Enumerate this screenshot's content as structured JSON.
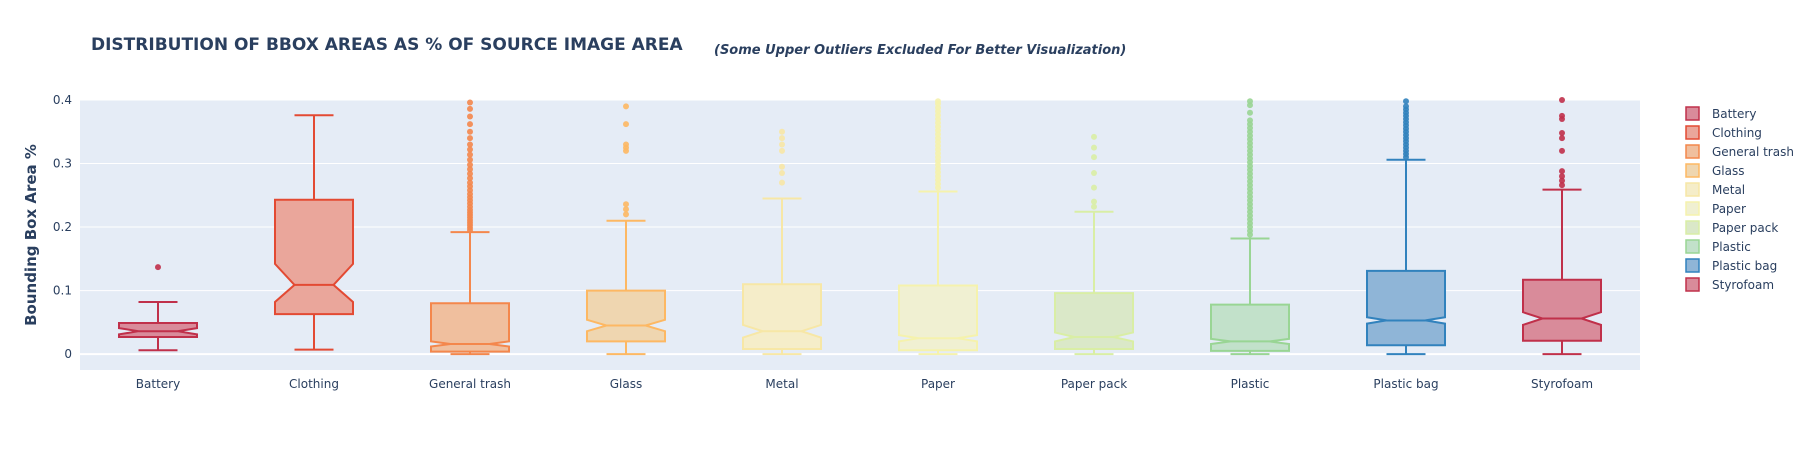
{
  "chart_data": {
    "type": "box",
    "title": "DISTRIBUTION OF BBOX AREAS AS % OF SOURCE IMAGE AREA",
    "subtitle": "(Some Upper Outliers Excluded For Better Visualization)",
    "xlabel": "",
    "ylabel": "Bounding Box Area %",
    "ylim": [
      -0.025,
      0.4
    ],
    "yticks": [
      0,
      0.1,
      0.2,
      0.3,
      0.4
    ],
    "ytick_labels": [
      "0",
      "0.1",
      "0.2",
      "0.3",
      "0.4"
    ],
    "notched": true,
    "grid": true,
    "legend_position": "right",
    "background": "#e5ecf6",
    "categories": [
      "Battery",
      "Clothing",
      "General trash",
      "Glass",
      "Metal",
      "Paper",
      "Paper pack",
      "Plastic",
      "Plastic bag",
      "Styrofoam"
    ],
    "series": [
      {
        "name": "Battery",
        "color": "#c0304a",
        "fill": "#d98b9a",
        "lower_whisker": 0.006,
        "q1": 0.027,
        "median": 0.036,
        "q3": 0.049,
        "upper_whisker": 0.082,
        "notch_low": 0.031,
        "notch_high": 0.041,
        "outliers": [
          0.137
        ]
      },
      {
        "name": "Clothing",
        "color": "#e34a33",
        "fill": "#eaa69b",
        "lower_whisker": 0.007,
        "q1": 0.063,
        "median": 0.109,
        "q3": 0.243,
        "upper_whisker": 0.376,
        "notch_low": 0.082,
        "notch_high": 0.142,
        "outliers": []
      },
      {
        "name": "General trash",
        "color": "#f4874c",
        "fill": "#f0bf9e",
        "lower_whisker": 0.0,
        "q1": 0.004,
        "median": 0.016,
        "q3": 0.08,
        "upper_whisker": 0.192,
        "notch_low": 0.012,
        "notch_high": 0.02,
        "outliers": [
          0.195,
          0.199,
          0.203,
          0.207,
          0.211,
          0.215,
          0.219,
          0.223,
          0.227,
          0.232,
          0.237,
          0.242,
          0.247,
          0.252,
          0.258,
          0.264,
          0.27,
          0.277,
          0.284,
          0.291,
          0.298,
          0.306,
          0.314,
          0.322,
          0.33,
          0.34,
          0.35,
          0.362,
          0.374,
          0.386,
          0.396
        ]
      },
      {
        "name": "Glass",
        "color": "#fdb863",
        "fill": "#efd6b0",
        "lower_whisker": 0.0,
        "q1": 0.02,
        "median": 0.045,
        "q3": 0.1,
        "upper_whisker": 0.21,
        "notch_low": 0.036,
        "notch_high": 0.054,
        "outliers": [
          0.22,
          0.228,
          0.236,
          0.32,
          0.325,
          0.33,
          0.362,
          0.39
        ]
      },
      {
        "name": "Metal",
        "color": "#f7e7a6",
        "fill": "#f5edc9",
        "lower_whisker": 0.0,
        "q1": 0.008,
        "median": 0.036,
        "q3": 0.11,
        "upper_whisker": 0.245,
        "notch_low": 0.026,
        "notch_high": 0.046,
        "outliers": [
          0.27,
          0.285,
          0.295,
          0.32,
          0.33,
          0.34,
          0.35
        ]
      },
      {
        "name": "Paper",
        "color": "#f5f2ad",
        "fill": "#f0f0d2",
        "lower_whisker": 0.0,
        "q1": 0.006,
        "median": 0.025,
        "q3": 0.108,
        "upper_whisker": 0.256,
        "notch_low": 0.02,
        "notch_high": 0.03,
        "outliers": [
          0.262,
          0.268,
          0.274,
          0.28,
          0.286,
          0.292,
          0.298,
          0.304,
          0.31,
          0.316,
          0.322,
          0.328,
          0.334,
          0.34,
          0.346,
          0.352,
          0.358,
          0.364,
          0.37,
          0.376,
          0.382,
          0.388,
          0.394,
          0.398
        ]
      },
      {
        "name": "Paper pack",
        "color": "#d9eea5",
        "fill": "#dae8c8",
        "lower_whisker": 0.0,
        "q1": 0.008,
        "median": 0.027,
        "q3": 0.096,
        "upper_whisker": 0.224,
        "notch_low": 0.02,
        "notch_high": 0.034,
        "outliers": [
          0.232,
          0.24,
          0.262,
          0.285,
          0.31,
          0.325,
          0.342
        ]
      },
      {
        "name": "Plastic",
        "color": "#99d594",
        "fill": "#c2e1ca",
        "lower_whisker": 0.0,
        "q1": 0.005,
        "median": 0.02,
        "q3": 0.078,
        "upper_whisker": 0.182,
        "notch_low": 0.016,
        "notch_high": 0.024,
        "outliers": [
          0.188,
          0.194,
          0.2,
          0.206,
          0.212,
          0.218,
          0.224,
          0.23,
          0.236,
          0.242,
          0.248,
          0.254,
          0.26,
          0.266,
          0.272,
          0.278,
          0.284,
          0.29,
          0.296,
          0.302,
          0.308,
          0.314,
          0.32,
          0.326,
          0.332,
          0.338,
          0.344,
          0.35,
          0.356,
          0.362,
          0.368,
          0.38,
          0.392,
          0.398
        ]
      },
      {
        "name": "Plastic bag",
        "color": "#3182bd",
        "fill": "#8fb5d7",
        "lower_whisker": 0.0,
        "q1": 0.014,
        "median": 0.053,
        "q3": 0.131,
        "upper_whisker": 0.306,
        "notch_low": 0.048,
        "notch_high": 0.058,
        "outliers": [
          0.31,
          0.315,
          0.32,
          0.325,
          0.33,
          0.335,
          0.34,
          0.345,
          0.35,
          0.355,
          0.36,
          0.365,
          0.37,
          0.375,
          0.38,
          0.385,
          0.39,
          0.398
        ]
      },
      {
        "name": "Styrofoam",
        "color": "#c0304a",
        "fill": "#d98b9a",
        "lower_whisker": 0.0,
        "q1": 0.021,
        "median": 0.056,
        "q3": 0.117,
        "upper_whisker": 0.259,
        "notch_low": 0.046,
        "notch_high": 0.066,
        "outliers": [
          0.266,
          0.273,
          0.28,
          0.288,
          0.32,
          0.34,
          0.348,
          0.37,
          0.375,
          0.4
        ]
      }
    ]
  }
}
